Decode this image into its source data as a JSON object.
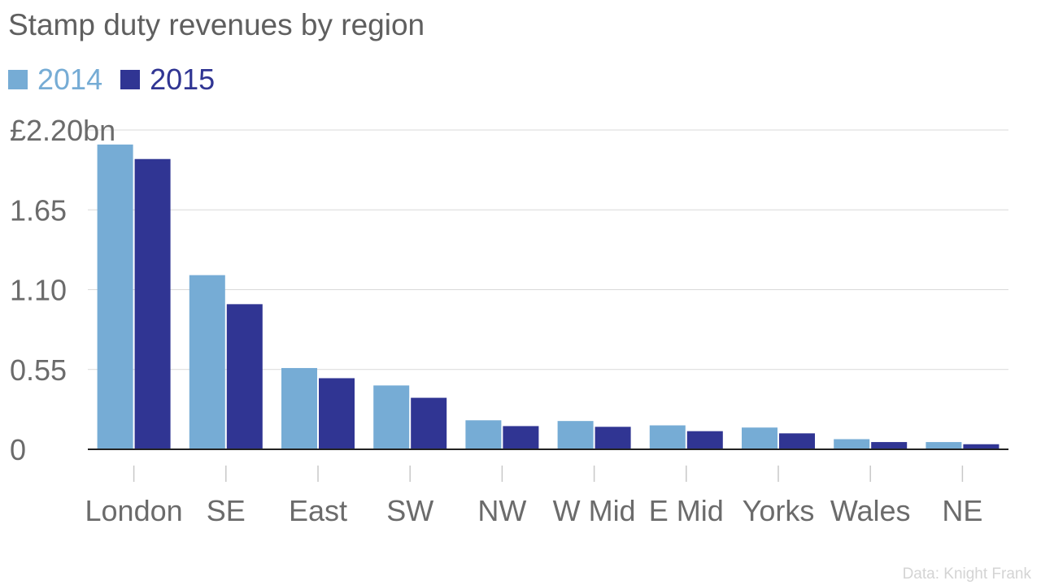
{
  "chart_data": {
    "type": "bar",
    "title": "Stamp duty revenues by region",
    "categories": [
      "London",
      "SE",
      "East",
      "SW",
      "NW",
      "W Mid",
      "E Mid",
      "Yorks",
      "Wales",
      "NE"
    ],
    "series": [
      {
        "name": "2014",
        "color": "#76acd5",
        "values": [
          2.1,
          1.2,
          0.56,
          0.44,
          0.2,
          0.195,
          0.165,
          0.15,
          0.07,
          0.05
        ]
      },
      {
        "name": "2015",
        "color": "#303593",
        "values": [
          2.0,
          1.0,
          0.49,
          0.355,
          0.16,
          0.155,
          0.125,
          0.11,
          0.05,
          0.035
        ]
      }
    ],
    "ylim": [
      0,
      2.2
    ],
    "yticks": [
      0,
      0.55,
      1.1,
      1.65,
      2.2
    ],
    "ytick_labels": [
      "0",
      "0.55",
      "1.10",
      "1.65",
      "£2.20bn"
    ],
    "grid": true,
    "legend_position": "top-left",
    "source": "Data: Knight Frank"
  },
  "colors": {
    "grid": "#d9d9d9",
    "axis": "#222222",
    "tick_text": "#6b6b6b"
  }
}
